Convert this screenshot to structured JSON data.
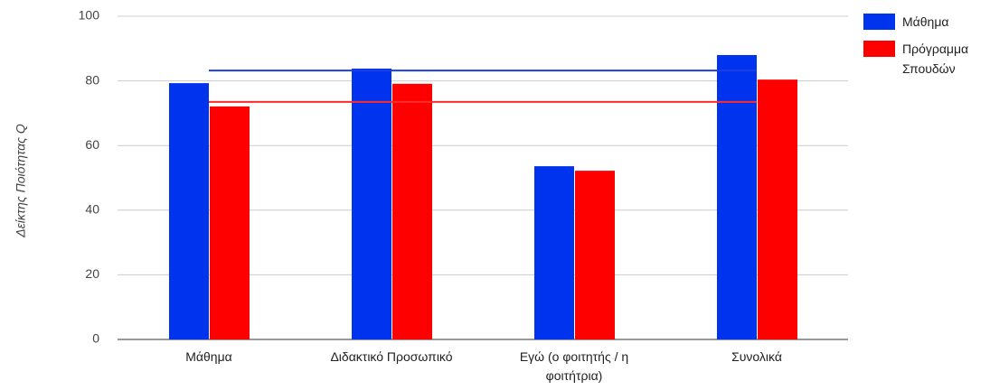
{
  "chart_data": {
    "type": "bar",
    "y_label": "Δείκτης Ποιότητας Q",
    "categories": [
      "Μάθημα",
      "Διδακτικό Προσωπικό",
      "Εγώ (ο φοιτητής / η φοιτήτρια)",
      "Συνολικά"
    ],
    "series": [
      {
        "name": "Μάθημα",
        "color": "#0033ee",
        "values": [
          79.3,
          83.8,
          53.6,
          88.0
        ]
      },
      {
        "name": "Πρόγραμμα Σπουδών",
        "color": "#ff0000",
        "values": [
          72.1,
          79.1,
          52.2,
          80.4
        ]
      }
    ],
    "reference_lines": [
      {
        "color": "#1b3fe0",
        "values": [
          83.2,
          83.2,
          83.2,
          83.2
        ]
      },
      {
        "color": "#ff2a2a",
        "values": [
          73.5,
          73.5,
          73.5,
          73.5
        ]
      }
    ],
    "ylim": [
      0,
      100
    ],
    "yticks": [
      0,
      20,
      40,
      60,
      80,
      100
    ],
    "grid": true
  }
}
